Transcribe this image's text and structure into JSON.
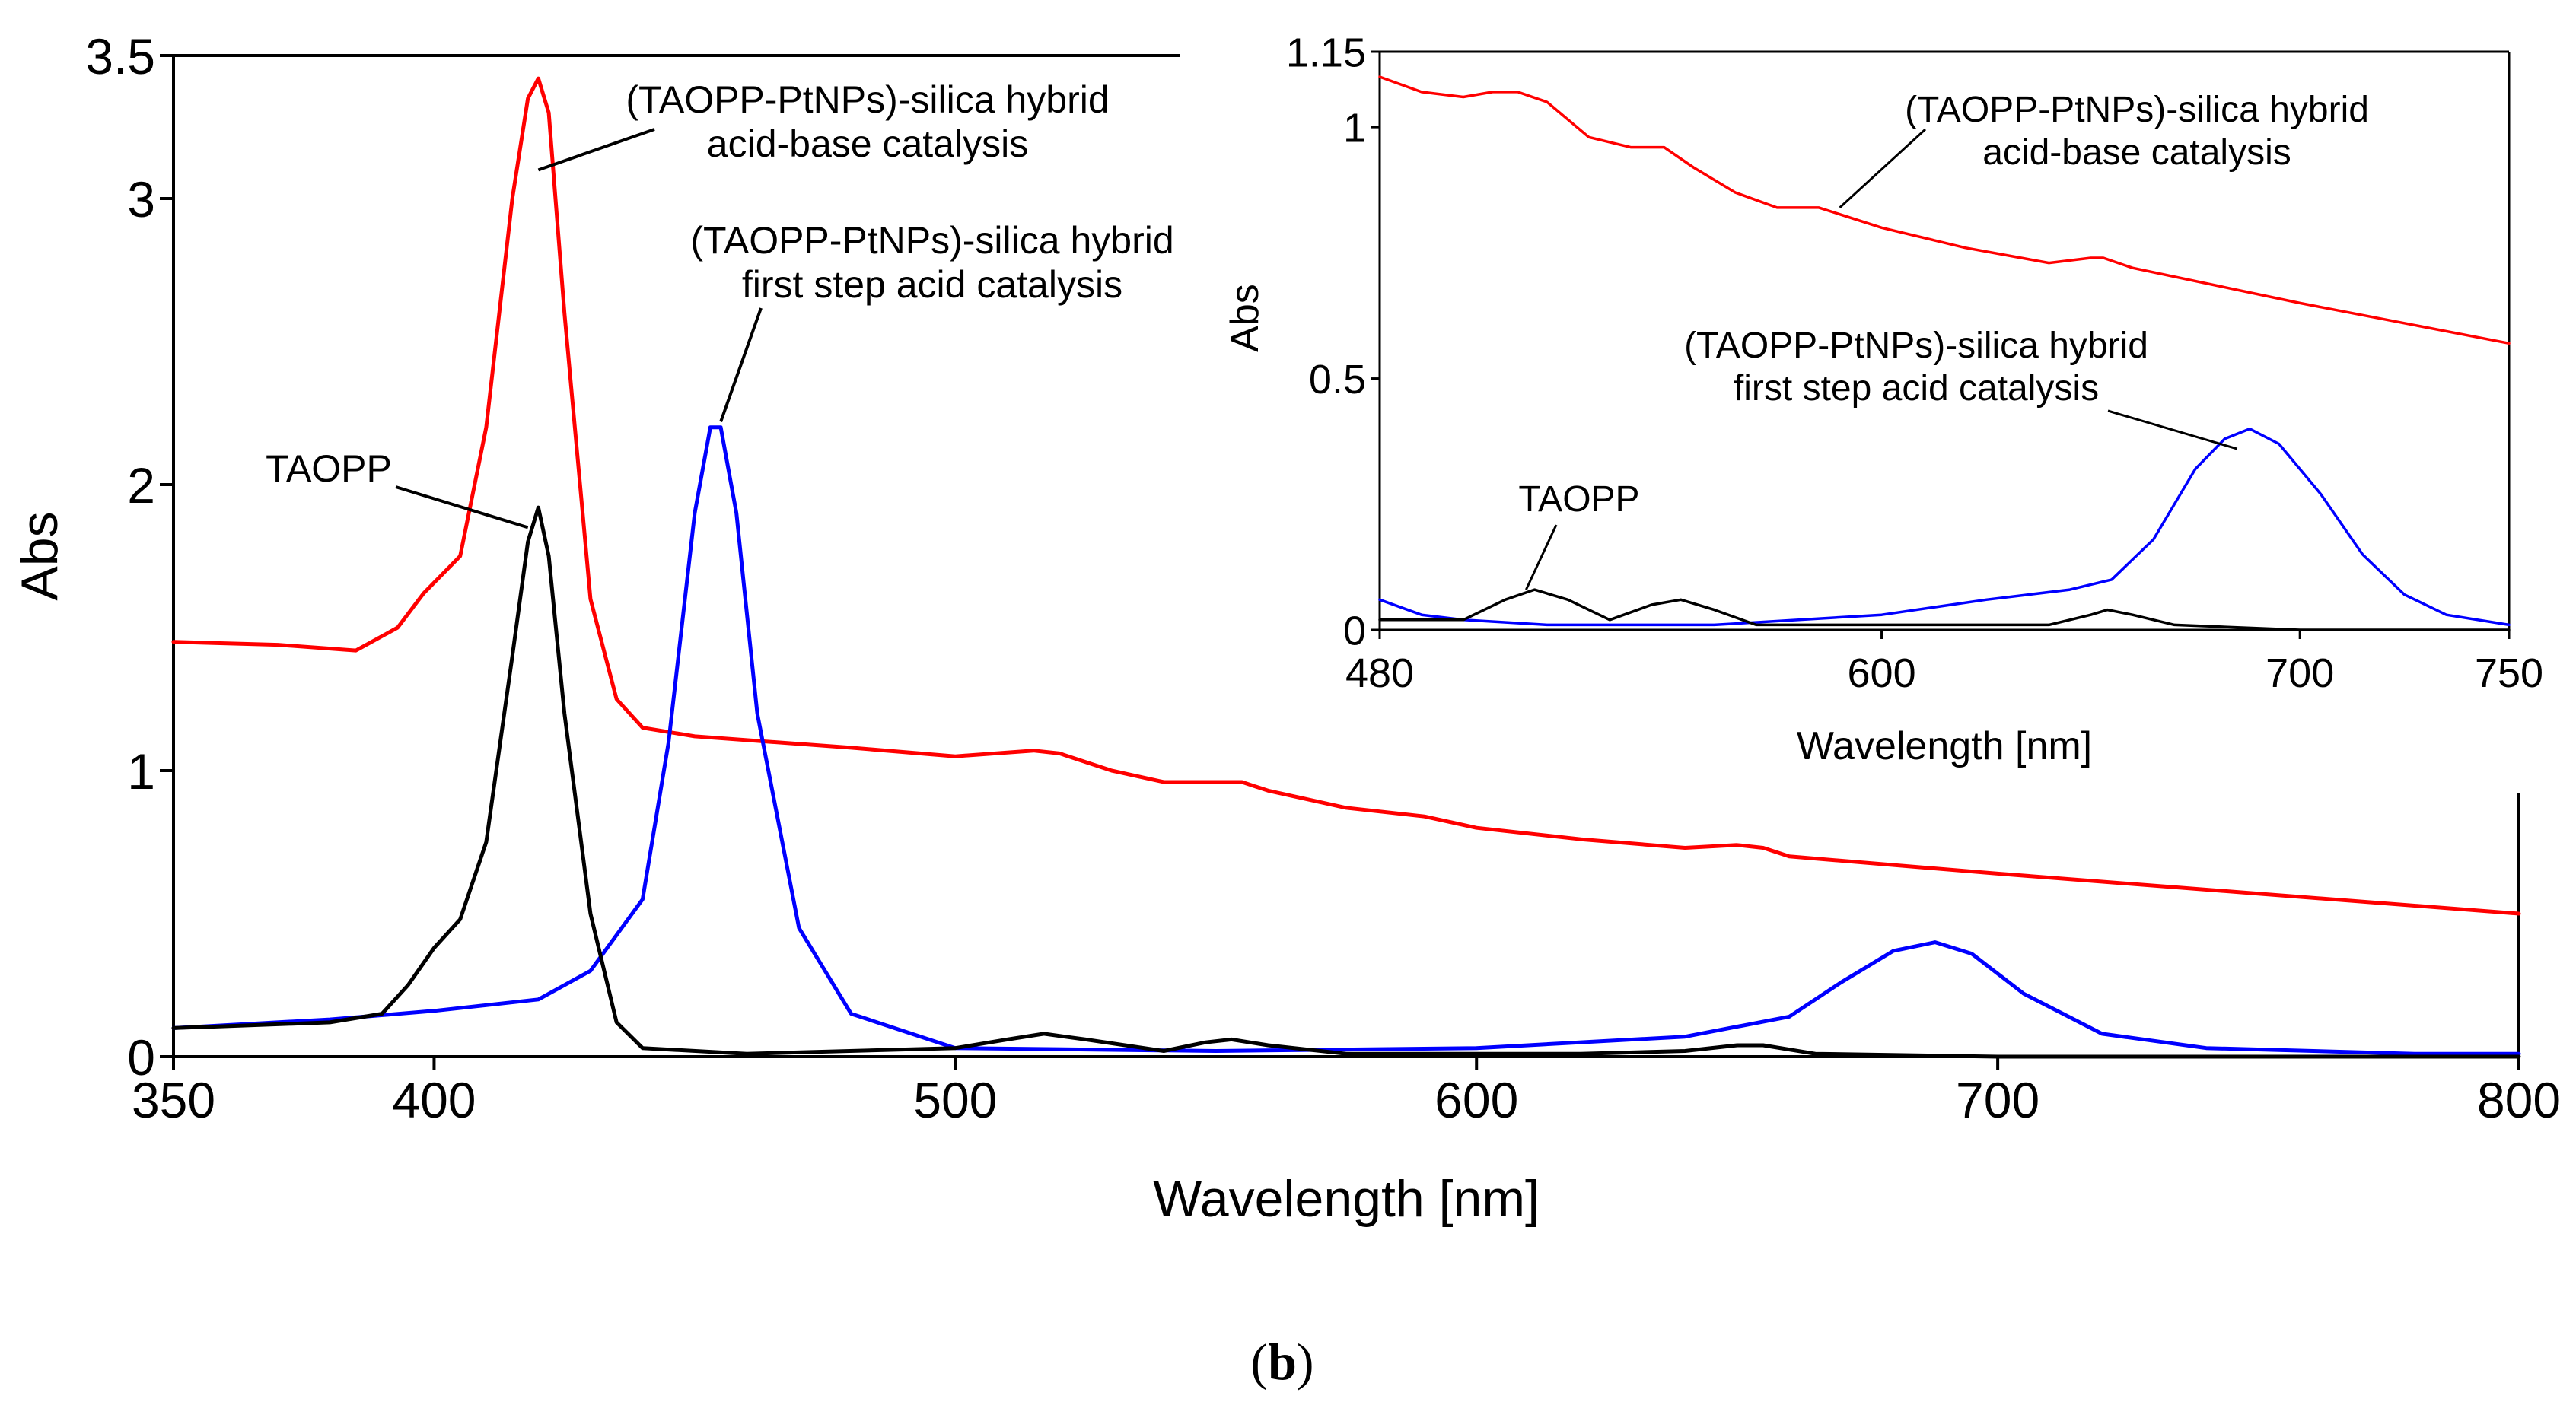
{
  "caption": {
    "open": "(",
    "letter": "b",
    "close": ")"
  },
  "chart_data": [
    {
      "id": "main",
      "type": "line",
      "title": "",
      "xlabel": "Wavelength [nm]",
      "ylabel": "Abs",
      "xlim": [
        350,
        800
      ],
      "ylim": [
        0,
        3.5
      ],
      "xticks": [
        350,
        400,
        500,
        600,
        700,
        800
      ],
      "xtick_labels": [
        "350",
        "400",
        "500",
        "600",
        "700",
        "800"
      ],
      "yticks": [
        0,
        1,
        2,
        3,
        3.5
      ],
      "ytick_labels": [
        "0",
        "1",
        "2",
        "3",
        "3.5"
      ],
      "grid": false,
      "series": [
        {
          "name": "(TAOPP-PtNPs)-silica hybrid acid-base catalysis",
          "color": "#ff0000",
          "x": [
            350,
            370,
            385,
            393,
            398,
            405,
            410,
            415,
            418,
            420,
            422,
            425,
            430,
            435,
            440,
            450,
            480,
            500,
            515,
            520,
            530,
            540,
            555,
            560,
            575,
            590,
            600,
            620,
            640,
            650,
            655,
            660,
            700,
            750,
            800
          ],
          "y": [
            1.45,
            1.44,
            1.42,
            1.5,
            1.62,
            1.75,
            2.2,
            3.0,
            3.35,
            3.42,
            3.3,
            2.6,
            1.6,
            1.25,
            1.15,
            1.12,
            1.08,
            1.05,
            1.07,
            1.06,
            1.0,
            0.96,
            0.96,
            0.93,
            0.87,
            0.84,
            0.8,
            0.76,
            0.73,
            0.74,
            0.73,
            0.7,
            0.64,
            0.57,
            0.5
          ]
        },
        {
          "name": "(TAOPP-PtNPs)-silica hybrid first step acid catalysis",
          "color": "#0000ff",
          "x": [
            350,
            380,
            400,
            420,
            430,
            440,
            445,
            450,
            453,
            455,
            458,
            462,
            470,
            480,
            500,
            550,
            600,
            640,
            660,
            670,
            680,
            688,
            695,
            705,
            720,
            740,
            780,
            800
          ],
          "y": [
            0.1,
            0.13,
            0.16,
            0.2,
            0.3,
            0.55,
            1.1,
            1.9,
            2.2,
            2.2,
            1.9,
            1.2,
            0.45,
            0.15,
            0.03,
            0.02,
            0.03,
            0.07,
            0.14,
            0.26,
            0.37,
            0.4,
            0.36,
            0.22,
            0.08,
            0.03,
            0.01,
            0.01
          ]
        },
        {
          "name": "TAOPP",
          "color": "#000000",
          "x": [
            350,
            380,
            390,
            395,
            400,
            405,
            410,
            415,
            418,
            420,
            422,
            425,
            430,
            435,
            440,
            460,
            500,
            510,
            517,
            525,
            540,
            548,
            553,
            560,
            575,
            620,
            640,
            650,
            655,
            665,
            700,
            800
          ],
          "y": [
            0.1,
            0.12,
            0.15,
            0.25,
            0.38,
            0.48,
            0.75,
            1.4,
            1.8,
            1.92,
            1.75,
            1.2,
            0.5,
            0.12,
            0.03,
            0.01,
            0.03,
            0.06,
            0.08,
            0.06,
            0.02,
            0.05,
            0.06,
            0.04,
            0.01,
            0.01,
            0.02,
            0.04,
            0.04,
            0.01,
            0.0,
            0.0
          ]
        }
      ],
      "annotations": [
        {
          "lines": [
            "(TAOPP-PtNPs)-silica hybrid",
            "acid-base catalysis"
          ],
          "target_series": 0
        },
        {
          "lines": [
            "(TAOPP-PtNPs)-silica hybrid",
            "first step acid catalysis"
          ],
          "target_series": 1
        },
        {
          "lines": [
            "TAOPP"
          ],
          "target_series": 2
        }
      ]
    },
    {
      "id": "inset",
      "type": "line",
      "title": "",
      "xlabel": "Wavelength [nm]",
      "ylabel": "Abs",
      "xlim": [
        480,
        750
      ],
      "ylim": [
        0,
        1.15
      ],
      "xticks": [
        480,
        600,
        700,
        750
      ],
      "xtick_labels": [
        "480",
        "600",
        "700",
        "750"
      ],
      "yticks": [
        0,
        0.5,
        1,
        1.15
      ],
      "ytick_labels": [
        "0",
        "0.5",
        "1",
        "1.15"
      ],
      "grid": false,
      "series": [
        {
          "name": "(TAOPP-PtNPs)-silica hybrid acid-base catalysis",
          "color": "#ff0000",
          "x": [
            480,
            490,
            500,
            507,
            513,
            520,
            530,
            540,
            548,
            555,
            565,
            575,
            585,
            600,
            620,
            640,
            650,
            653,
            660,
            700,
            750
          ],
          "y": [
            1.1,
            1.07,
            1.06,
            1.07,
            1.07,
            1.05,
            0.98,
            0.96,
            0.96,
            0.92,
            0.87,
            0.84,
            0.84,
            0.8,
            0.76,
            0.73,
            0.74,
            0.74,
            0.72,
            0.65,
            0.57
          ]
        },
        {
          "name": "(TAOPP-PtNPs)-silica hybrid first step acid catalysis",
          "color": "#0000ff",
          "x": [
            480,
            490,
            500,
            520,
            560,
            600,
            625,
            635,
            645,
            655,
            665,
            675,
            682,
            688,
            695,
            705,
            715,
            725,
            735,
            750
          ],
          "y": [
            0.06,
            0.03,
            0.02,
            0.01,
            0.01,
            0.03,
            0.06,
            0.07,
            0.08,
            0.1,
            0.18,
            0.32,
            0.38,
            0.4,
            0.37,
            0.27,
            0.15,
            0.07,
            0.03,
            0.01
          ]
        },
        {
          "name": "TAOPP",
          "color": "#000000",
          "x": [
            480,
            500,
            510,
            517,
            525,
            535,
            545,
            552,
            560,
            570,
            600,
            640,
            650,
            654,
            660,
            670,
            700,
            750
          ],
          "y": [
            0.02,
            0.02,
            0.06,
            0.08,
            0.06,
            0.02,
            0.05,
            0.06,
            0.04,
            0.01,
            0.01,
            0.01,
            0.03,
            0.04,
            0.03,
            0.01,
            0.0,
            0.0
          ]
        }
      ],
      "annotations": [
        {
          "lines": [
            "(TAOPP-PtNPs)-silica hybrid",
            "acid-base catalysis"
          ],
          "target_series": 0
        },
        {
          "lines": [
            "(TAOPP-PtNPs)-silica hybrid",
            "first step acid catalysis"
          ],
          "target_series": 1
        },
        {
          "lines": [
            "TAOPP"
          ],
          "target_series": 2
        }
      ]
    }
  ]
}
